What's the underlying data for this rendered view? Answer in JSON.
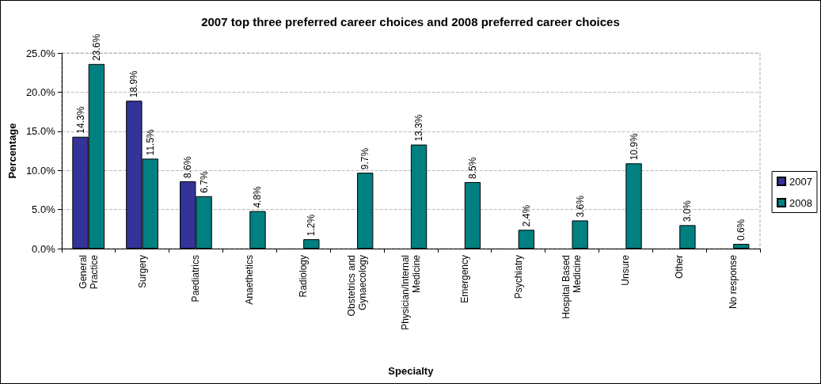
{
  "chart_data": {
    "type": "bar",
    "title": "2007 top three preferred career choices and 2008 preferred career choices",
    "xlabel": "Specialty",
    "ylabel": "Percentage",
    "categories": [
      "General Practice",
      "Surgery",
      "Paediatrics",
      "Anaethetics",
      "Radiology",
      "Obstetrics and Gynaecology",
      "Physician/Internal Medicine",
      "Emergency",
      "Psychiatry",
      "Hospital Based Medicine",
      "Unsure",
      "Other",
      "No response"
    ],
    "series": [
      {
        "name": "2007",
        "color": "#333399",
        "values": [
          14.3,
          18.9,
          8.6,
          null,
          null,
          null,
          null,
          null,
          null,
          null,
          null,
          null,
          null
        ],
        "value_labels": [
          "14.3%",
          "18.9%",
          "8.6%",
          null,
          null,
          null,
          null,
          null,
          null,
          null,
          null,
          null,
          null
        ]
      },
      {
        "name": "2008",
        "color": "#008080",
        "values": [
          23.6,
          11.5,
          6.7,
          4.8,
          1.2,
          9.7,
          13.3,
          8.5,
          2.4,
          3.6,
          10.9,
          3.0,
          0.6
        ],
        "value_labels": [
          "23.6%",
          "11.5%",
          "6.7%",
          "4.8%",
          "1.2%",
          "9.7%",
          "13.3%",
          "8.5%",
          "2.4%",
          "3.6%",
          "10.9%",
          "3.0%",
          "0.6%"
        ]
      }
    ],
    "ylim": [
      0,
      25
    ],
    "yticks": [
      {
        "value": 0,
        "label": "0.0%"
      },
      {
        "value": 5,
        "label": "5.0%"
      },
      {
        "value": 10,
        "label": "10.0%"
      },
      {
        "value": 15,
        "label": "15.0%"
      },
      {
        "value": 20,
        "label": "20.0%"
      },
      {
        "value": 25,
        "label": "25.0%"
      }
    ],
    "grid": "y",
    "legend": "right"
  }
}
